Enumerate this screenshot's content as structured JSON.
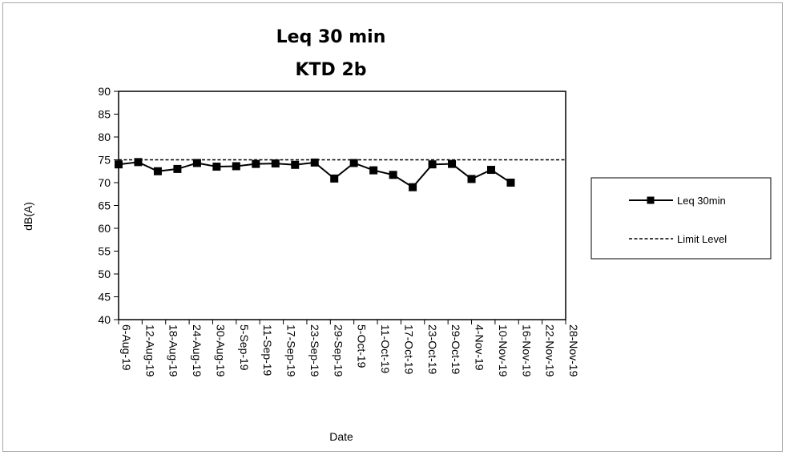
{
  "chart_data": {
    "type": "line",
    "title": [
      "Leq 30 min",
      "KTD 2b"
    ],
    "xlabel": "Date",
    "ylabel": "dB(A)",
    "ylim": [
      40,
      90
    ],
    "yticks": [
      40,
      45,
      50,
      55,
      60,
      65,
      70,
      75,
      80,
      85,
      90
    ],
    "categories": [
      "6-Aug-19",
      "12-Aug-19",
      "18-Aug-19",
      "24-Aug-19",
      "30-Aug-19",
      "5-Sep-19",
      "11-Sep-19",
      "17-Sep-19",
      "23-Sep-19",
      "29-Sep-19",
      "5-Oct-19",
      "11-Oct-19",
      "17-Oct-19",
      "23-Oct-19",
      "29-Oct-19",
      "4-Nov-19",
      "10-Nov-19",
      "16-Nov-19",
      "22-Nov-19",
      "28-Nov-19"
    ],
    "series": [
      {
        "name": "Leq 30min",
        "style": "solid-square-markers",
        "color": "#000000",
        "points": [
          {
            "x": "6-Aug-19",
            "y": 74.0
          },
          {
            "x": "11-Aug-19",
            "y": 74.5
          },
          {
            "x": "16-Aug-19",
            "y": 72.5
          },
          {
            "x": "21-Aug-19",
            "y": 73.0
          },
          {
            "x": "26-Aug-19",
            "y": 74.3
          },
          {
            "x": "31-Aug-19",
            "y": 73.5
          },
          {
            "x": "5-Sep-19",
            "y": 73.6
          },
          {
            "x": "10-Sep-19",
            "y": 74.1
          },
          {
            "x": "15-Sep-19",
            "y": 74.2
          },
          {
            "x": "20-Sep-19",
            "y": 73.9
          },
          {
            "x": "25-Sep-19",
            "y": 74.4
          },
          {
            "x": "30-Sep-19",
            "y": 70.9
          },
          {
            "x": "5-Oct-19",
            "y": 74.3
          },
          {
            "x": "10-Oct-19",
            "y": 72.7
          },
          {
            "x": "15-Oct-19",
            "y": 71.7
          },
          {
            "x": "20-Oct-19",
            "y": 69.0
          },
          {
            "x": "25-Oct-19",
            "y": 74.0
          },
          {
            "x": "30-Oct-19",
            "y": 74.1
          },
          {
            "x": "4-Nov-19",
            "y": 70.8
          },
          {
            "x": "9-Nov-19",
            "y": 72.8
          },
          {
            "x": "14-Nov-19",
            "y": 70.0
          }
        ]
      },
      {
        "name": "Limit Level",
        "style": "dashed",
        "color": "#000000",
        "constant": 75
      }
    ],
    "legend_position": "right",
    "grid": false
  }
}
